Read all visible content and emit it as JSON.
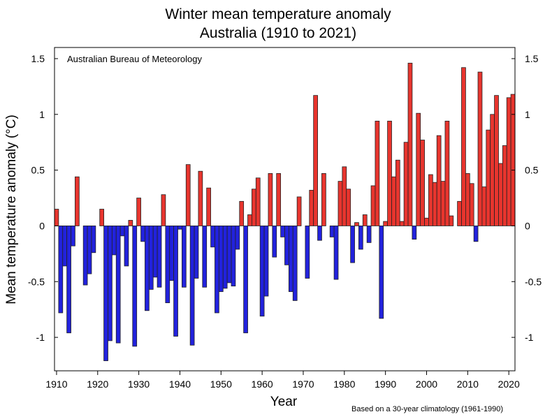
{
  "chart_data": {
    "type": "bar",
    "title": "Winter mean temperature anomaly",
    "subtitle": "Australia (1910 to 2021)",
    "xlabel": "Year",
    "ylabel": "Mean temperature anomaly (°C)",
    "source_label": "Australian Bureau of Meteorology",
    "footnote": "Based on a 30-year climatology (1961-1990)",
    "ylim": [
      -1.3,
      1.6
    ],
    "xlim": [
      1909.5,
      2021.5
    ],
    "y_ticks": [
      -1,
      -0.5,
      0,
      0.5,
      1,
      1.5
    ],
    "y_tick_labels": [
      "-1",
      "-0.5",
      "0",
      "0.5",
      "1",
      "1.5"
    ],
    "x_ticks": [
      1910,
      1920,
      1930,
      1940,
      1950,
      1960,
      1970,
      1980,
      1990,
      2000,
      2010,
      2020
    ],
    "x_tick_labels": [
      "1910",
      "1920",
      "1930",
      "1940",
      "1950",
      "1960",
      "1970",
      "1980",
      "1990",
      "2000",
      "2010",
      "2020"
    ],
    "grid": false,
    "colors": {
      "positive": "#e8352e",
      "negative": "#2222dd",
      "edge": "#222222"
    },
    "start_year": 1910,
    "values": [
      0.15,
      -0.78,
      -0.36,
      -0.96,
      -0.18,
      0.44,
      0.0,
      -0.53,
      -0.43,
      -0.24,
      0.0,
      0.15,
      -1.21,
      -1.03,
      -0.26,
      -1.05,
      -0.09,
      -0.36,
      0.05,
      -1.08,
      0.25,
      -0.14,
      -0.76,
      -0.57,
      -0.46,
      -0.55,
      0.28,
      -0.69,
      -0.49,
      -0.99,
      -0.03,
      -0.55,
      0.55,
      -1.07,
      -0.47,
      0.49,
      -0.55,
      0.34,
      -0.19,
      -0.78,
      -0.59,
      -0.56,
      -0.51,
      -0.54,
      -0.21,
      0.22,
      -0.96,
      0.1,
      0.33,
      0.43,
      -0.81,
      -0.63,
      0.47,
      -0.28,
      0.47,
      -0.1,
      -0.35,
      -0.59,
      -0.67,
      0.26,
      0.0,
      -0.47,
      0.32,
      1.17,
      -0.13,
      0.47,
      0.0,
      -0.1,
      -0.48,
      0.4,
      0.53,
      0.33,
      -0.33,
      0.03,
      -0.21,
      0.1,
      -0.15,
      0.36,
      0.94,
      -0.83,
      0.04,
      0.94,
      0.44,
      0.59,
      0.04,
      0.75,
      1.46,
      -0.12,
      1.01,
      0.77,
      0.07,
      0.46,
      0.39,
      0.81,
      0.4,
      0.94,
      0.09,
      0.0,
      0.22,
      1.42,
      0.47,
      0.38,
      -0.14,
      1.38,
      0.35,
      0.86,
      1.0,
      1.17,
      0.56,
      0.72,
      1.15,
      1.18
    ]
  }
}
